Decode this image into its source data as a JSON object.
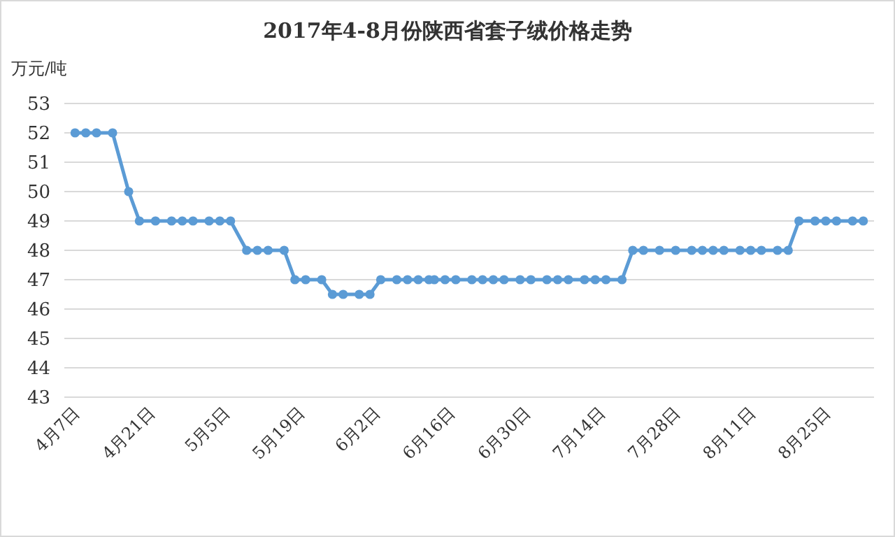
{
  "chart_data": {
    "type": "line",
    "title": "2017年4-8月份陕西省套子绒价格走势",
    "ylabel": "万元/吨",
    "x": [
      "--04-07",
      "--04-09",
      "--04-11",
      "--04-14",
      "--04-17",
      "--04-19",
      "--04-22",
      "--04-25",
      "--04-27",
      "--04-29",
      "--05-02",
      "--05-04",
      "--05-06",
      "--05-09",
      "--05-11",
      "--05-13",
      "--05-16",
      "--05-18",
      "--05-20",
      "--05-23",
      "--05-25",
      "--05-27",
      "--05-30",
      "--06-01",
      "--06-03",
      "--06-06",
      "--06-08",
      "--06-10",
      "--06-12",
      "--06-13",
      "--06-15",
      "--06-17",
      "--06-20",
      "--06-22",
      "--06-24",
      "--06-26",
      "--06-29",
      "--07-01",
      "--07-04",
      "--07-06",
      "--07-08",
      "--07-11",
      "--07-13",
      "--07-15",
      "--07-18",
      "--07-20",
      "--07-22",
      "--07-25",
      "--07-28",
      "--07-31",
      "--08-02",
      "--08-04",
      "--08-06",
      "--08-09",
      "--08-11",
      "--08-13",
      "--08-16",
      "--08-18",
      "--08-20",
      "--08-23",
      "--08-25",
      "--08-27",
      "--08-30",
      "--09-01"
    ],
    "series": [
      {
        "color": "#5b9bd5",
        "values": [
          52,
          52,
          52,
          52,
          50,
          49,
          49,
          49,
          49,
          49,
          49,
          49,
          49,
          48,
          48,
          48,
          48,
          47,
          47,
          47,
          46.5,
          46.5,
          46.5,
          46.5,
          47,
          47,
          47,
          47,
          47,
          47,
          47,
          47,
          47,
          47,
          47,
          47,
          47,
          47,
          47,
          47,
          47,
          47,
          47,
          47,
          47,
          48,
          48,
          48,
          48,
          48,
          48,
          48,
          48,
          48,
          48,
          48,
          48,
          48,
          49,
          49,
          49,
          49,
          49,
          49
        ]
      }
    ],
    "xlim": [
      "--04-05",
      "--09-03"
    ],
    "xticks": [
      {
        "value": "--04-07",
        "label": "4月7日"
      },
      {
        "value": "--04-21",
        "label": "4月21日"
      },
      {
        "value": "--05-05",
        "label": "5月5日"
      },
      {
        "value": "--05-19",
        "label": "5月19日"
      },
      {
        "value": "--06-02",
        "label": "6月2日"
      },
      {
        "value": "--06-16",
        "label": "6月16日"
      },
      {
        "value": "--06-30",
        "label": "6月30日"
      },
      {
        "value": "--07-14",
        "label": "7月14日"
      },
      {
        "value": "--07-28",
        "label": "7月28日"
      },
      {
        "value": "--08-11",
        "label": "8月11日"
      },
      {
        "value": "--08-25",
        "label": "8月25日"
      }
    ],
    "ylim": [
      43,
      53
    ],
    "yticks": [
      43,
      44,
      45,
      46,
      47,
      48,
      49,
      50,
      51,
      52,
      53
    ],
    "grid": "y",
    "marker": "circle",
    "line_style": "solid"
  }
}
